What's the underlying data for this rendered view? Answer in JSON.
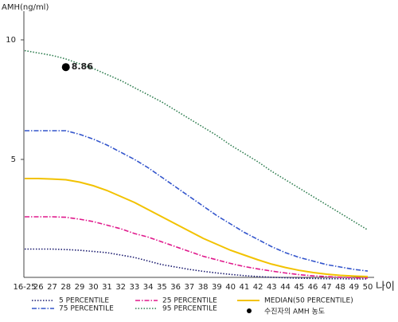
{
  "chart_data": {
    "type": "line",
    "y_label": "AMH(ng/ml)",
    "x_label": "나이",
    "categories": [
      "16-25",
      "26",
      "27",
      "28",
      "29",
      "30",
      "31",
      "32",
      "33",
      "34",
      "35",
      "36",
      "37",
      "38",
      "39",
      "40",
      "41",
      "42",
      "43",
      "44",
      "45",
      "46",
      "47",
      "48",
      "49",
      "50"
    ],
    "ylim": [
      0,
      11.2
    ],
    "yticks": [
      5,
      10
    ],
    "series": [
      {
        "name": "5 PERCENTILE",
        "color": "#1a1a6e",
        "style": "dotted",
        "values": [
          1.25,
          1.25,
          1.25,
          1.23,
          1.2,
          1.15,
          1.1,
          1.0,
          0.9,
          0.75,
          0.6,
          0.5,
          0.4,
          0.32,
          0.25,
          0.19,
          0.14,
          0.1,
          0.07,
          0.05,
          0.03,
          0.02,
          0.01,
          0.01,
          0,
          0
        ]
      },
      {
        "name": "25 PERCENTILE",
        "color": "#e0198c",
        "style": "dashdot",
        "values": [
          2.6,
          2.6,
          2.6,
          2.58,
          2.5,
          2.4,
          2.25,
          2.1,
          1.9,
          1.75,
          1.55,
          1.35,
          1.15,
          0.95,
          0.8,
          0.65,
          0.52,
          0.42,
          0.33,
          0.25,
          0.18,
          0.13,
          0.1,
          0.07,
          0.05,
          0.04
        ]
      },
      {
        "name": "MEDIAN(50 PERCENTILE)",
        "color": "#f2c200",
        "style": "solid",
        "values": [
          4.2,
          4.2,
          4.18,
          4.15,
          4.05,
          3.9,
          3.7,
          3.45,
          3.2,
          2.9,
          2.6,
          2.3,
          2.0,
          1.7,
          1.45,
          1.2,
          1.0,
          0.8,
          0.62,
          0.48,
          0.36,
          0.27,
          0.2,
          0.15,
          0.12,
          0.1
        ]
      },
      {
        "name": "75 PERCENTILE",
        "color": "#3355cc",
        "style": "dashdot",
        "values": [
          6.2,
          6.2,
          6.2,
          6.2,
          6.05,
          5.85,
          5.6,
          5.3,
          5.0,
          4.65,
          4.25,
          3.85,
          3.45,
          3.05,
          2.65,
          2.3,
          1.95,
          1.65,
          1.35,
          1.1,
          0.9,
          0.75,
          0.6,
          0.5,
          0.4,
          0.33
        ]
      },
      {
        "name": "95 PERCENTILE",
        "color": "#2e7d4f",
        "style": "dotted",
        "values": [
          9.55,
          9.45,
          9.35,
          9.2,
          9.0,
          8.8,
          8.55,
          8.3,
          8.0,
          7.7,
          7.4,
          7.05,
          6.7,
          6.35,
          6.0,
          5.6,
          5.25,
          4.9,
          4.5,
          4.15,
          3.8,
          3.45,
          3.1,
          2.75,
          2.4,
          2.05
        ]
      }
    ],
    "point": {
      "name": "수진자의 AMH 농도",
      "x": "28",
      "value": 8.86,
      "color": "#000000"
    }
  }
}
